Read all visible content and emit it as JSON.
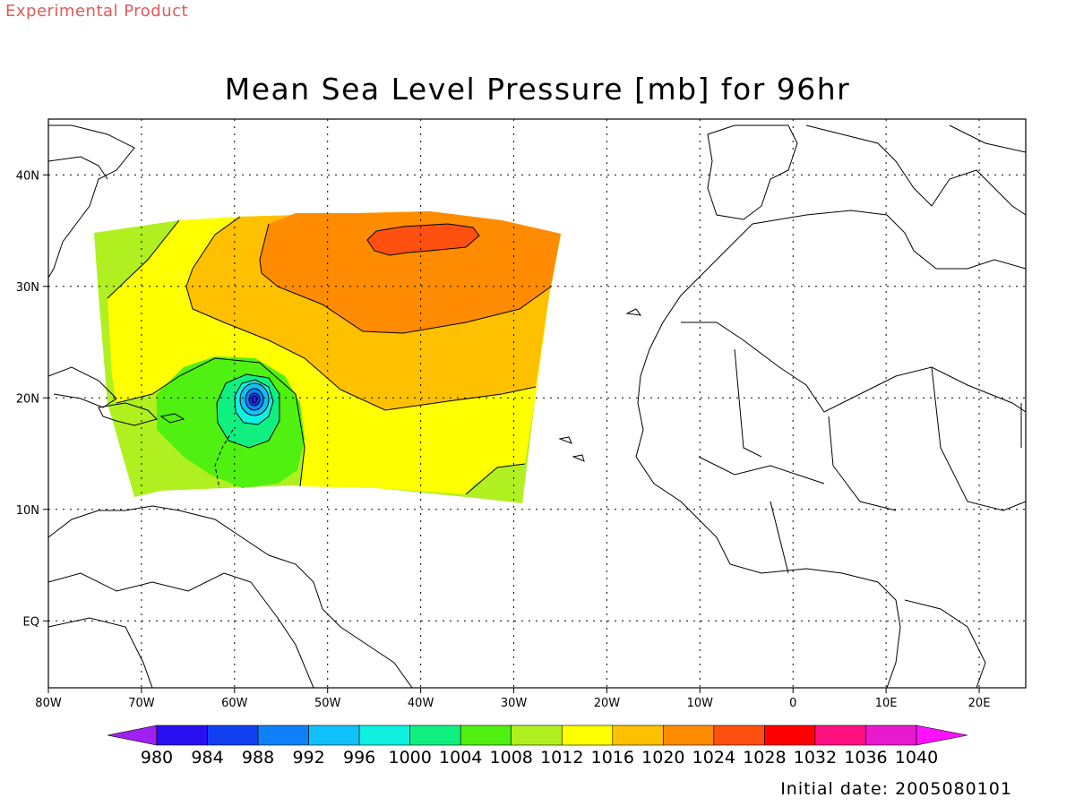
{
  "header": {
    "experimental_label": "Experimental Product"
  },
  "map": {
    "title": "Mean Sea Level Pressure [mb] for 96hr",
    "projection": "lat-lon",
    "lon_range": [
      -80,
      25
    ],
    "lat_range": [
      -6,
      45
    ],
    "grid": true,
    "x_ticks": [
      "80W",
      "70W",
      "60W",
      "50W",
      "40W",
      "30W",
      "20W",
      "10W",
      "0",
      "10E",
      "20E"
    ],
    "y_ticks": [
      "40N",
      "30N",
      "20N",
      "10N",
      "EQ"
    ],
    "contour_field": {
      "low_center": {
        "lon": -58,
        "lat": 20.5,
        "value": 980
      },
      "high_center": {
        "lon": -42,
        "lat": 34.5,
        "value": 1028
      }
    }
  },
  "colorbar": {
    "labels": [
      "980",
      "984",
      "988",
      "992",
      "996",
      "1000",
      "1004",
      "1008",
      "1012",
      "1016",
      "1020",
      "1024",
      "1028",
      "1032",
      "1036",
      "1040"
    ],
    "colors": [
      "#a020f0",
      "#2810f0",
      "#1040f0",
      "#1080f8",
      "#10c0f8",
      "#10f0e0",
      "#10f080",
      "#50f010",
      "#b0f020",
      "#ffff00",
      "#ffc000",
      "#ff8c00",
      "#ff5010",
      "#ff0000",
      "#ff1080",
      "#e81ad0",
      "#ff10ff"
    ]
  },
  "footer": {
    "initial_date": "Initial date: 2005080101"
  }
}
